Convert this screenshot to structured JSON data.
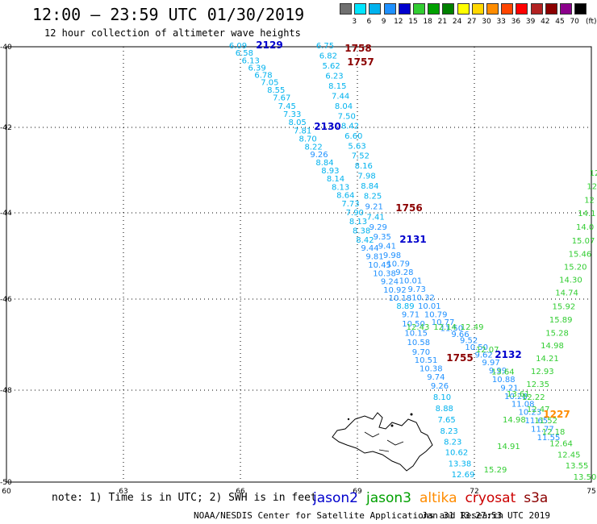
{
  "header": {
    "title": "12:00 – 23:59 UTC 01/30/2019",
    "subtitle": "12 hour collection of altimeter wave heights"
  },
  "colorbar": {
    "labels": [
      "3",
      "6",
      "9",
      "12",
      "15",
      "18",
      "21",
      "24",
      "27",
      "30",
      "33",
      "36",
      "39",
      "42",
      "45",
      "70"
    ],
    "unit": "(ft)",
    "colors": [
      "#707070",
      "#00e5ff",
      "#00b2ee",
      "#1e90ff",
      "#0000cd",
      "#32cd32",
      "#00a000",
      "#008000",
      "#ffff00",
      "#ffd700",
      "#ff8c00",
      "#ff4500",
      "#ff0000",
      "#b22222",
      "#8b0000",
      "#8b008b",
      "#000000"
    ]
  },
  "axes": {
    "lat_labels": [
      "-40",
      "-42",
      "-44",
      "-46",
      "-48",
      "-50"
    ],
    "lon_labels": [
      "60",
      "63",
      "66",
      "69",
      "72",
      "75"
    ]
  },
  "tracks": [
    {
      "label": "2129",
      "color": "#0000cd"
    },
    {
      "label": "1758",
      "color": "#8b0000"
    },
    {
      "label": "1757",
      "color": "#8b0000"
    },
    {
      "label": "2130",
      "color": "#0000cd"
    },
    {
      "label": "1756",
      "color": "#8b0000"
    },
    {
      "label": "2131",
      "color": "#0000cd"
    },
    {
      "label": "1755",
      "color": "#8b0000"
    },
    {
      "label": "2132",
      "color": "#0000cd"
    },
    {
      "label": "1227",
      "color": "#ff8c00"
    }
  ],
  "wave_readings": {
    "track_a": [
      "6.09",
      "6.58",
      "6.13",
      "6.39",
      "6.78",
      "7.05",
      "8.55",
      "7.67",
      "7.45",
      "7.33",
      "8.05",
      "7.81",
      "8.70",
      "8.22",
      "9.26",
      "8.84",
      "8.93",
      "8.14",
      "8.13",
      "8.64",
      "7.73",
      "7.90",
      "8.13",
      "8.38",
      "8.42",
      "9.44",
      "9.81",
      "10.45",
      "10.38",
      "9.24",
      "10.92",
      "10.18",
      "8.89",
      "9.71",
      "10.50",
      "10.15",
      "10.58",
      "9.70",
      "10.51",
      "10.38",
      "9.74",
      "9.26"
    ],
    "track_b": [
      "6.75",
      "6.82",
      "5.62",
      "6.23",
      "8.15",
      "7.44",
      "8.04",
      "7.50",
      "8.42",
      "6.60",
      "5.63",
      "7.52",
      "8.16",
      "7.98",
      "8.84",
      "8.25",
      "9.21",
      "7.41",
      "9.29",
      "9.35",
      "9.41",
      "9.98",
      "10.79",
      "9.28",
      "10.01",
      "9.73",
      "10.32",
      "10.01",
      "10.79",
      "10.77",
      "11.50",
      "9.66",
      "9.52",
      "10.50",
      "9.62",
      "9.97",
      "9.99",
      "10.88",
      "9.21",
      "10.28",
      "11.08",
      "10.23",
      "11.65",
      "11.77",
      "11.55"
    ],
    "track_c": [
      "8.10",
      "8.88",
      "7.65",
      "8.23",
      "8.23",
      "10.62",
      "13.38",
      "12.69"
    ],
    "track_d": [
      "12.43",
      "12.14",
      "12.49",
      "12.07",
      "13.64",
      "13.61",
      "14.98",
      "14.91",
      "15.29"
    ],
    "track_e": [
      "12",
      "12",
      "12",
      "14.1",
      "14.0",
      "15.07",
      "15.46",
      "15.20",
      "14.30",
      "14.74",
      "15.92",
      "15.89",
      "15.28",
      "14.98",
      "14.21",
      "12.93",
      "12.35",
      "12.22",
      "12.47",
      "11.52",
      "12.18",
      "12.64",
      "12.45",
      "13.55",
      "13.50"
    ]
  },
  "notes": {
    "text": "note: 1) Time is in UTC; 2) SWH is in feet"
  },
  "satellites": [
    {
      "name": "jason2",
      "color": "#0000cd"
    },
    {
      "name": "jason3",
      "color": "#00a000"
    },
    {
      "name": "altika",
      "color": "#ff8c00"
    },
    {
      "name": "cryosat",
      "color": "#cc0000"
    },
    {
      "name": "s3a",
      "color": "#8b0000"
    }
  ],
  "footer": {
    "credit": "NOAA/NESDIS Center for Satellite Applications and Research",
    "timestamp": "Jan 31 13:27:53 UTC 2019"
  }
}
